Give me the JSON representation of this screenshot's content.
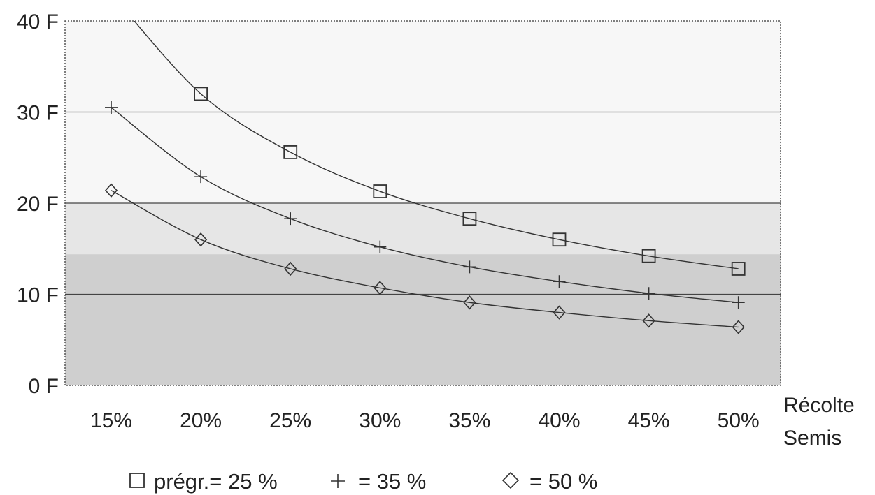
{
  "chart_data": {
    "type": "line",
    "x": [
      "15%",
      "20%",
      "25%",
      "30%",
      "35%",
      "40%",
      "45%",
      "50%"
    ],
    "x_title_line1": "Récolte",
    "x_title_line2": "Semis",
    "y_ticks": [
      "0 F",
      "10 F",
      "20 F",
      "30 F",
      "40 F"
    ],
    "ylim": [
      0,
      40
    ],
    "grid": "horizontal",
    "bands": [
      {
        "from": 0,
        "to": 14.4,
        "shade": "#cfcfcf"
      },
      {
        "from": 14.4,
        "to": 20,
        "shade": "#e6e6e6"
      },
      {
        "from": 20,
        "to": 40,
        "shade": "#f7f7f7"
      }
    ],
    "series": [
      {
        "marker": "square",
        "values": [
          43,
          32,
          25.6,
          21.3,
          18.3,
          16.0,
          14.2,
          12.8
        ]
      },
      {
        "marker": "plus",
        "values": [
          30.5,
          22.9,
          18.3,
          15.2,
          13.0,
          11.4,
          10.1,
          9.1
        ]
      },
      {
        "marker": "diamond",
        "values": [
          21.4,
          16.0,
          12.8,
          10.7,
          9.1,
          8.0,
          7.1,
          6.4
        ]
      }
    ],
    "legend": {
      "position": "bottom",
      "items": [
        {
          "marker": "square",
          "text": "prégr.= 25 %"
        },
        {
          "marker": "plus",
          "text": "= 35 %"
        },
        {
          "marker": "diamond",
          "text": "= 50 %"
        }
      ]
    },
    "colors": {
      "line": "#333333",
      "grid": "#444444"
    }
  }
}
